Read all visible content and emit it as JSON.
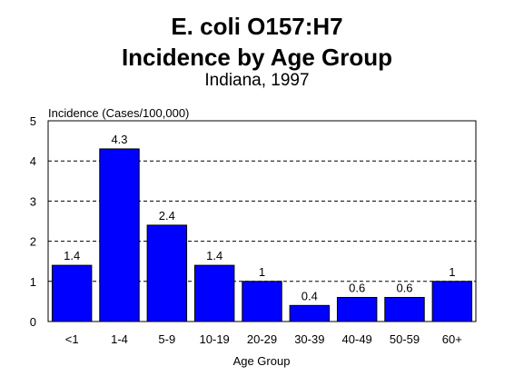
{
  "chart_data": {
    "type": "bar",
    "title": "E. coli O157:H7",
    "subtitle": "Incidence by Age Group",
    "subtitle2": "Indiana, 1997",
    "ylabel": "Incidence (Cases/100,000)",
    "xlabel": "Age Group",
    "categories": [
      "<1",
      "1-4",
      "5-9",
      "10-19",
      "20-29",
      "30-39",
      "40-49",
      "50-59",
      "60+"
    ],
    "values": [
      1.4,
      4.3,
      2.4,
      1.4,
      1,
      0.4,
      0.6,
      0.6,
      1
    ],
    "value_labels": [
      "1.4",
      "4.3",
      "2.4",
      "1.4",
      "1",
      "0.4",
      "0.6",
      "0.6",
      "1"
    ],
    "ylim": [
      0,
      5
    ],
    "yticks": [
      "0",
      "1",
      "2",
      "3",
      "4",
      "5"
    ],
    "grid": true,
    "bar_color": "#0000FF"
  }
}
